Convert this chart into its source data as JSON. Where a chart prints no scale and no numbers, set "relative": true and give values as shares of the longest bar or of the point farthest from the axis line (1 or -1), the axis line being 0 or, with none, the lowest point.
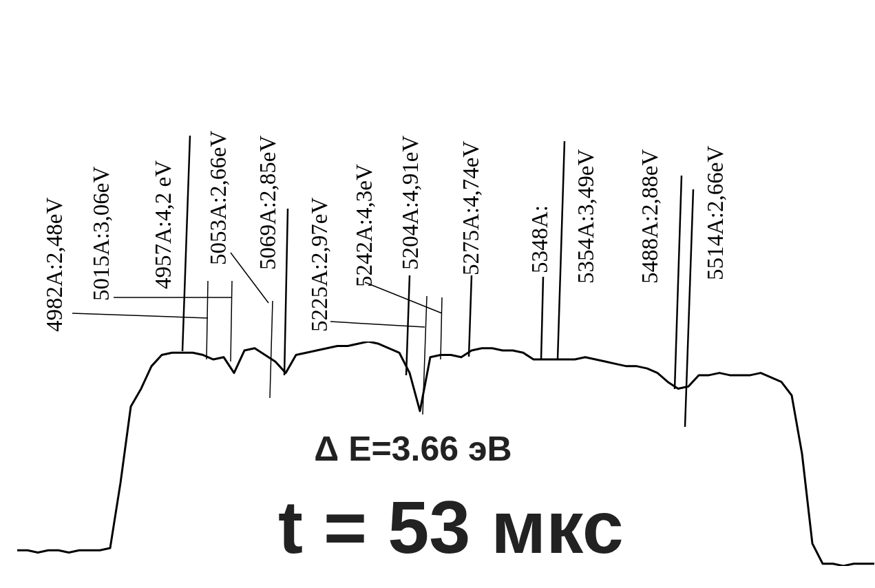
{
  "chart_data": {
    "type": "line",
    "relative": true,
    "categories": [
      null,
      null,
      null,
      null,
      null,
      null,
      null,
      null,
      null,
      null,
      null,
      null,
      null,
      null,
      null,
      null,
      null,
      null,
      null,
      null,
      null,
      null,
      null,
      null,
      null,
      null,
      null,
      null,
      null,
      null,
      null,
      null,
      null,
      null,
      null,
      null,
      null,
      null,
      null,
      null,
      null,
      null,
      null,
      null,
      null,
      null,
      null,
      null,
      null,
      null,
      null,
      null,
      null,
      null,
      null,
      null,
      null,
      null,
      null,
      null,
      null,
      null,
      null,
      null,
      null,
      null,
      null,
      null,
      null,
      null,
      null,
      null,
      null,
      null,
      null,
      null,
      null,
      null,
      null,
      null,
      null,
      null,
      null,
      null
    ],
    "series": [
      {
        "color": "#000000",
        "values": [
          0.07,
          0.07,
          0.06,
          0.07,
          0.07,
          0.06,
          0.07,
          0.07,
          0.07,
          0.08,
          0.37,
          0.71,
          0.79,
          0.89,
          0.94,
          0.95,
          0.95,
          0.95,
          0.94,
          0.92,
          0.93,
          0.86,
          0.96,
          0.97,
          0.94,
          0.91,
          0.86,
          0.94,
          0.95,
          0.96,
          0.97,
          0.98,
          0.98,
          0.99,
          1.0,
          0.99,
          0.97,
          0.95,
          0.86,
          0.69,
          0.93,
          0.94,
          0.94,
          0.93,
          0.96,
          0.97,
          0.97,
          0.96,
          0.96,
          0.95,
          0.92,
          0.92,
          0.92,
          0.92,
          0.92,
          0.93,
          0.92,
          0.91,
          0.9,
          0.89,
          0.89,
          0.88,
          0.86,
          0.82,
          0.79,
          0.8,
          0.85,
          0.85,
          0.86,
          0.85,
          0.85,
          0.85,
          0.86,
          0.84,
          0.82,
          0.76,
          0.5,
          0.1,
          0.01,
          0.01,
          0.0,
          0.01,
          0.01,
          0.01
        ]
      }
    ],
    "annotations": [
      "4982A:2,48eV",
      "5015A:3,06eV",
      "4957A:4,2 eV",
      "5053A:2,66eV",
      "5069A:2,85eV",
      "5225A:2,97eV",
      "5242A:4,3eV",
      "5204A:4,91eV",
      "5275A:4,74eV",
      "5348A:",
      "5354A:3,49eV",
      "5488A:2,88eV",
      "5514A:2,66eV",
      "Δ E=3.66 эВ",
      "t = 53 мкс"
    ]
  }
}
